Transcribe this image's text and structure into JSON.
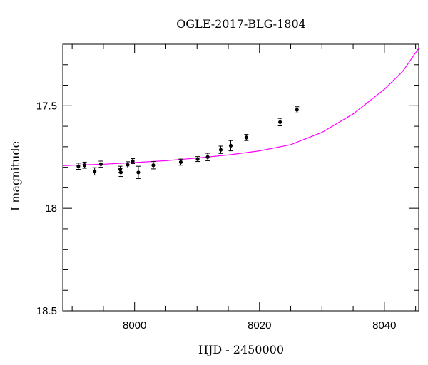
{
  "chart_data": {
    "type": "scatter",
    "title": "OGLE-2017-BLG-1804",
    "xlabel": "HJD - 2450000",
    "ylabel": "I magnitude",
    "xlim": [
      7988.5,
      8045.5
    ],
    "ylim": [
      18.5,
      17.2
    ],
    "y_inverted": true,
    "x_ticks": [
      8000,
      8020,
      8040
    ],
    "y_ticks": [
      17.5,
      18,
      18.5
    ],
    "y_tick_labels": [
      "17.5",
      "18",
      "18.5"
    ],
    "grid": false,
    "colors": {
      "points": "#000000",
      "model": "#ff00ff",
      "axes": "#000000"
    },
    "points": [
      {
        "x": 7991.0,
        "y": 17.795,
        "err": 0.015
      },
      {
        "x": 7992.0,
        "y": 17.79,
        "err": 0.015
      },
      {
        "x": 7993.6,
        "y": 17.82,
        "err": 0.018
      },
      {
        "x": 7994.6,
        "y": 17.785,
        "err": 0.015
      },
      {
        "x": 7997.7,
        "y": 17.81,
        "err": 0.015
      },
      {
        "x": 7997.8,
        "y": 17.825,
        "err": 0.02
      },
      {
        "x": 7998.9,
        "y": 17.788,
        "err": 0.015
      },
      {
        "x": 7999.7,
        "y": 17.77,
        "err": 0.012
      },
      {
        "x": 8000.6,
        "y": 17.825,
        "err": 0.03
      },
      {
        "x": 8003.0,
        "y": 17.79,
        "err": 0.018
      },
      {
        "x": 8007.4,
        "y": 17.775,
        "err": 0.015
      },
      {
        "x": 8010.1,
        "y": 17.76,
        "err": 0.012
      },
      {
        "x": 8011.7,
        "y": 17.75,
        "err": 0.018
      },
      {
        "x": 8013.8,
        "y": 17.715,
        "err": 0.018
      },
      {
        "x": 8015.4,
        "y": 17.695,
        "err": 0.025
      },
      {
        "x": 8017.9,
        "y": 17.655,
        "err": 0.015
      },
      {
        "x": 8023.3,
        "y": 17.58,
        "err": 0.018
      },
      {
        "x": 8026.0,
        "y": 17.52,
        "err": 0.015
      }
    ],
    "model": {
      "x": [
        7988.5,
        7995,
        8000,
        8005,
        8010,
        8015,
        8020,
        8025,
        8030,
        8035,
        8040,
        8043,
        8045.5
      ],
      "y": [
        17.792,
        17.785,
        17.777,
        17.768,
        17.755,
        17.74,
        17.72,
        17.69,
        17.63,
        17.54,
        17.42,
        17.33,
        17.22
      ]
    }
  }
}
